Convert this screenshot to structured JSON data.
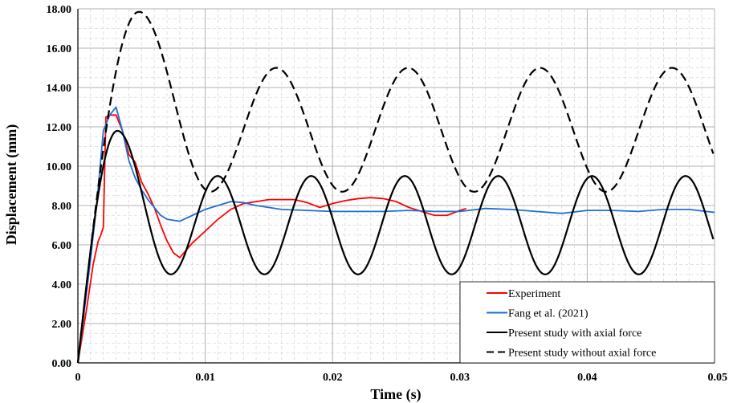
{
  "chart_data": {
    "type": "line",
    "title": "",
    "xlabel": "Time (s)",
    "ylabel": "Displacement (mm)",
    "xlim": [
      0,
      0.05
    ],
    "ylim": [
      0,
      18
    ],
    "x_ticks": [
      0,
      0.01,
      0.02,
      0.03,
      0.04,
      0.05
    ],
    "x_tick_labels": [
      "0",
      "0.01",
      "0.02",
      "0.03",
      "0.04",
      "0.05"
    ],
    "y_ticks": [
      0,
      2,
      4,
      6,
      8,
      10,
      12,
      14,
      16,
      18
    ],
    "y_tick_labels": [
      "0.00",
      "2.00",
      "4.00",
      "6.00",
      "8.00",
      "10.00",
      "12.00",
      "14.00",
      "16.00",
      "18.00"
    ],
    "grid": "major solid, minor dashed",
    "legend_position": "bottom-right",
    "series": [
      {
        "name": "Experiment",
        "color": "#ff0000",
        "style": "solid",
        "x": [
          0,
          0.0007,
          0.0012,
          0.0016,
          0.0018,
          0.002,
          0.0022,
          0.0025,
          0.003,
          0.0035,
          0.004,
          0.0045,
          0.005,
          0.0055,
          0.006,
          0.0065,
          0.007,
          0.0075,
          0.008,
          0.009,
          0.01,
          0.011,
          0.012,
          0.013,
          0.014,
          0.015,
          0.016,
          0.017,
          0.018,
          0.019,
          0.02,
          0.021,
          0.022,
          0.023,
          0.024,
          0.025,
          0.026,
          0.027,
          0.028,
          0.029,
          0.03,
          0.0305
        ],
        "y": [
          0,
          2.8,
          5.0,
          6.2,
          6.5,
          6.9,
          12.5,
          12.6,
          12.6,
          11.8,
          10.6,
          10.2,
          9.2,
          8.6,
          7.9,
          7.0,
          6.2,
          5.6,
          5.35,
          6.1,
          6.7,
          7.3,
          7.8,
          8.1,
          8.2,
          8.3,
          8.3,
          8.3,
          8.15,
          7.9,
          8.1,
          8.25,
          8.35,
          8.4,
          8.35,
          8.2,
          7.9,
          7.7,
          7.5,
          7.5,
          7.75,
          7.85
        ]
      },
      {
        "name": "Fang et al. (2021)",
        "color": "#1f6fd6",
        "style": "solid",
        "x": [
          0,
          0.0005,
          0.001,
          0.0015,
          0.002,
          0.0025,
          0.003,
          0.0035,
          0.004,
          0.0045,
          0.005,
          0.0055,
          0.006,
          0.0065,
          0.007,
          0.008,
          0.009,
          0.01,
          0.011,
          0.012,
          0.013,
          0.014,
          0.016,
          0.018,
          0.02,
          0.022,
          0.024,
          0.026,
          0.028,
          0.03,
          0.032,
          0.034,
          0.036,
          0.038,
          0.04,
          0.042,
          0.044,
          0.046,
          0.048,
          0.05
        ],
        "y": [
          0,
          2.6,
          5.3,
          8.2,
          11.8,
          12.6,
          13.0,
          11.8,
          10.3,
          9.4,
          8.8,
          8.3,
          7.9,
          7.5,
          7.3,
          7.2,
          7.5,
          7.8,
          8.0,
          8.2,
          8.15,
          8.0,
          7.8,
          7.75,
          7.7,
          7.7,
          7.7,
          7.75,
          7.7,
          7.7,
          7.85,
          7.8,
          7.7,
          7.6,
          7.75,
          7.75,
          7.7,
          7.8,
          7.8,
          7.65
        ]
      },
      {
        "name": "Present study with axial force",
        "color": "#000000",
        "style": "solid",
        "function": "y = 7 + 4.8*sin(2*pi*t/0.0075) for t <= 0.001875, else 7 + 4.8*sin(2*pi*(t-0.001875)/0.0075 + pi/2) damped to amplitude 2.5 after first peak",
        "x": [
          0,
          0.001,
          0.002,
          0.003,
          0.0045,
          0.0059,
          0.0073,
          0.0087,
          0.0102,
          0.0116,
          0.013,
          0.0145,
          0.0159,
          0.0173,
          0.0187,
          0.0202,
          0.0216,
          0.023,
          0.0245,
          0.0259,
          0.0273,
          0.0287,
          0.0302,
          0.0316,
          0.033,
          0.0345,
          0.0359,
          0.0373,
          0.0387,
          0.0402,
          0.0416,
          0.043,
          0.0445,
          0.0459,
          0.0473,
          0.0487,
          0.05
        ],
        "y": [
          0,
          5.6,
          10.2,
          11.8,
          9.3,
          6.0,
          4.5,
          7.0,
          9.5,
          7.0,
          4.5,
          7.0,
          9.5,
          7.0,
          4.5,
          7.0,
          9.5,
          7.0,
          4.5,
          7.0,
          9.5,
          7.0,
          4.5,
          7.0,
          9.5,
          7.0,
          4.5,
          7.0,
          9.5,
          7.0,
          4.5,
          7.0,
          9.5,
          7.0,
          4.5,
          7.0,
          6.8
        ]
      },
      {
        "name": "Present study without axial force",
        "color": "#000000",
        "style": "dashed",
        "x": [
          0,
          0.001,
          0.002,
          0.003,
          0.004,
          0.0048,
          0.006,
          0.0075,
          0.009,
          0.0103,
          0.0118,
          0.013,
          0.0145,
          0.0157,
          0.017,
          0.0183,
          0.0196,
          0.021,
          0.0223,
          0.0236,
          0.0249,
          0.0262,
          0.0275,
          0.0288,
          0.0302,
          0.0315,
          0.0328,
          0.0341,
          0.0354,
          0.0367,
          0.038,
          0.0393,
          0.0407,
          0.042,
          0.0433,
          0.0446,
          0.0459,
          0.0472,
          0.0485,
          0.05
        ],
        "y": [
          0,
          6.0,
          11.0,
          15.0,
          17.3,
          17.85,
          17.0,
          14.0,
          10.5,
          8.7,
          10.5,
          13.3,
          14.9,
          15.0,
          13.3,
          10.6,
          8.7,
          8.7,
          10.6,
          13.3,
          15.0,
          15.0,
          13.3,
          10.6,
          8.7,
          8.7,
          10.6,
          13.3,
          15.0,
          15.0,
          13.3,
          10.6,
          8.7,
          8.7,
          10.6,
          13.3,
          15.0,
          15.0,
          13.3,
          11.4
        ]
      }
    ]
  }
}
